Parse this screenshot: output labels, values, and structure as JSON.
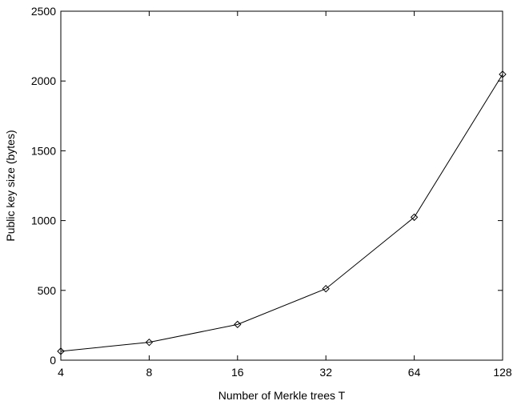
{
  "chart_data": {
    "type": "line",
    "title": "",
    "xlabel": "Number of Merkle trees T",
    "ylabel": "Public key size (bytes)",
    "x_scale": "log2",
    "x": [
      4,
      8,
      16,
      32,
      64,
      128
    ],
    "x_tick_labels": [
      "4",
      "8",
      "16",
      "32",
      "64",
      "128"
    ],
    "xlim": [
      4,
      128
    ],
    "ylim": [
      0,
      2500
    ],
    "y_ticks": [
      0,
      500,
      1000,
      1500,
      2000,
      2500
    ],
    "y_tick_labels": [
      "0",
      "500",
      "1000",
      "1500",
      "2000",
      "2500"
    ],
    "grid": false,
    "legend": "none",
    "series": [
      {
        "values": [
          64,
          128,
          256,
          512,
          1024,
          2048
        ],
        "marker": "diamond",
        "color": "#000000"
      }
    ]
  }
}
